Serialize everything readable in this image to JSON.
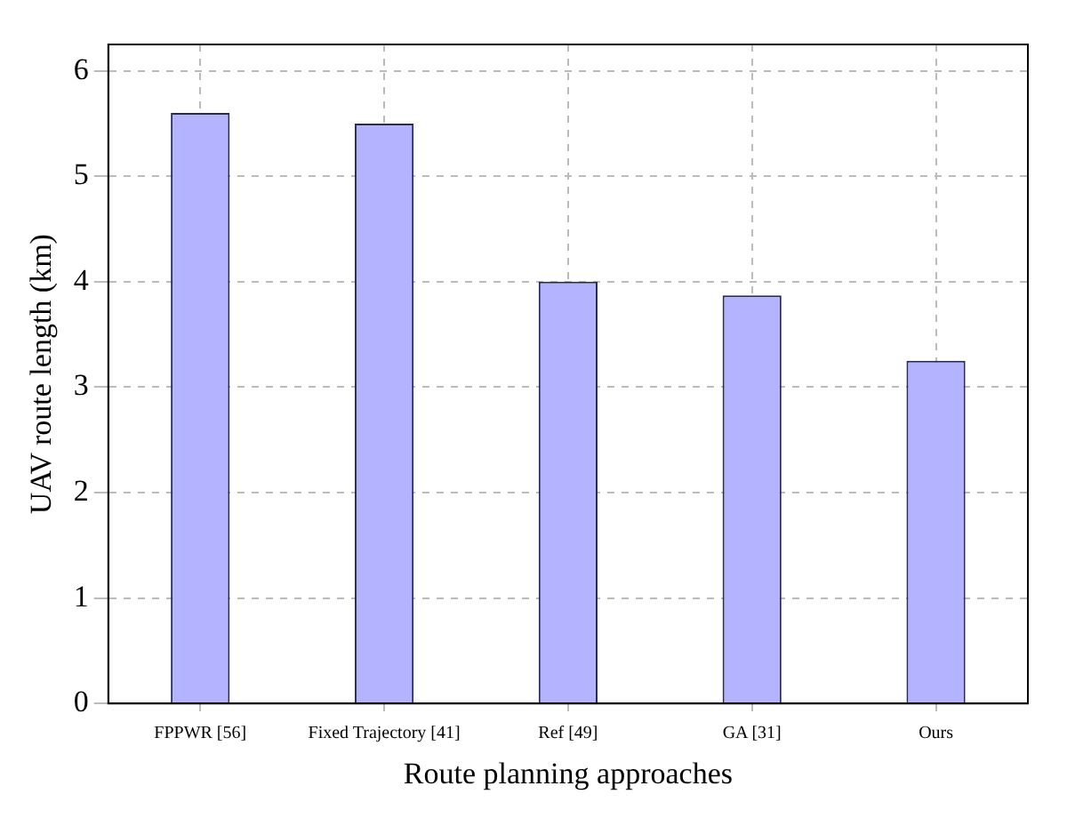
{
  "chart_data": {
    "type": "bar",
    "xlabel": "Route planning approaches",
    "ylabel": "UAV route length (km)",
    "categories": [
      "FPPWR [56]",
      "Fixed Trajectory [41]",
      "Ref [49]",
      "GA [31]",
      "Ours"
    ],
    "values": [
      5.6,
      5.5,
      4.0,
      3.87,
      3.25
    ],
    "color": "#b3b3ff",
    "ylim": [
      0,
      6.25
    ],
    "yticks": [
      0,
      1,
      2,
      3,
      4,
      5,
      6
    ],
    "grid": true
  }
}
